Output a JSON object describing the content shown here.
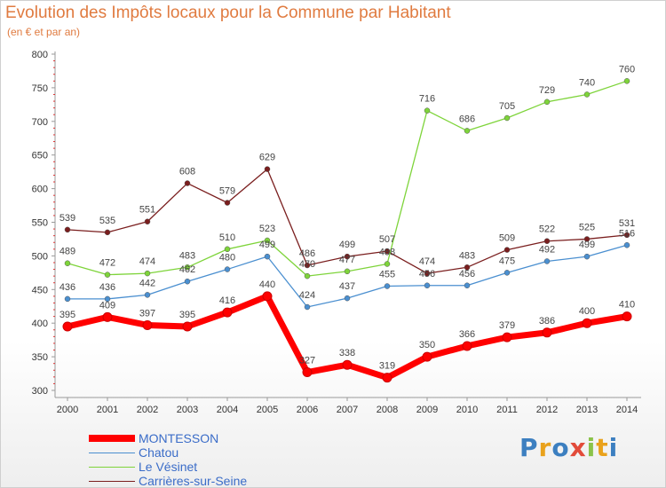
{
  "page": {
    "title": "Evolution des Impôts locaux pour la Commune par Habitant",
    "subtitle": "(en € et par an)",
    "logo": "Proxiti"
  },
  "chart_data": {
    "type": "line",
    "title": "Evolution des Impôts locaux pour la Commune par Habitant",
    "subtitle": "(en € et par an)",
    "xlabel": "",
    "ylabel": "",
    "x": [
      2000,
      2001,
      2002,
      2003,
      2004,
      2005,
      2006,
      2007,
      2008,
      2009,
      2010,
      2011,
      2012,
      2013,
      2014
    ],
    "ylim": [
      300,
      800
    ],
    "yticks": [
      300,
      350,
      400,
      450,
      500,
      550,
      600,
      650,
      700,
      750,
      800
    ],
    "grid": false,
    "legend_position": "bottom-left",
    "series": [
      {
        "name": "MONTESSON",
        "color": "#ff0000",
        "values": [
          395,
          409,
          397,
          395,
          416,
          440,
          327,
          338,
          319,
          350,
          366,
          379,
          386,
          400,
          410
        ]
      },
      {
        "name": "Chatou",
        "color": "#4a8fd0",
        "values": [
          436,
          436,
          442,
          462,
          480,
          499,
          424,
          437,
          455,
          456,
          456,
          475,
          492,
          499,
          516
        ]
      },
      {
        "name": "Le Vésinet",
        "color": "#7ed43a",
        "values": [
          489,
          472,
          474,
          483,
          510,
          523,
          470,
          477,
          488,
          716,
          686,
          705,
          729,
          740,
          760
        ]
      },
      {
        "name": "Carrières-sur-Seine",
        "color": "#7a1e1e",
        "values": [
          539,
          535,
          551,
          608,
          579,
          629,
          486,
          499,
          507,
          474,
          483,
          509,
          522,
          525,
          531
        ]
      }
    ],
    "labels": [
      [
        "395",
        "409",
        "397",
        "395",
        "416",
        "440",
        "327",
        "338",
        "319",
        "350",
        "366",
        "379",
        "386",
        "400",
        "410"
      ],
      [
        "436",
        "436",
        "442",
        "462",
        "480",
        "499",
        "424",
        "437",
        "455",
        "456",
        "456",
        "475",
        "492",
        "499",
        "516"
      ],
      [
        "489",
        "472",
        "474",
        "483",
        "510",
        "523",
        "470",
        "477",
        "488",
        "",
        "686",
        "705",
        "729",
        "740",
        "760"
      ],
      [
        "539",
        "535",
        "551",
        "608",
        "579",
        "629",
        "486",
        "499",
        "507",
        "474",
        "483",
        "509",
        "522",
        "525",
        "531"
      ]
    ],
    "extra_labels": [
      {
        "series": 2,
        "index": 9,
        "text": "716"
      }
    ]
  }
}
